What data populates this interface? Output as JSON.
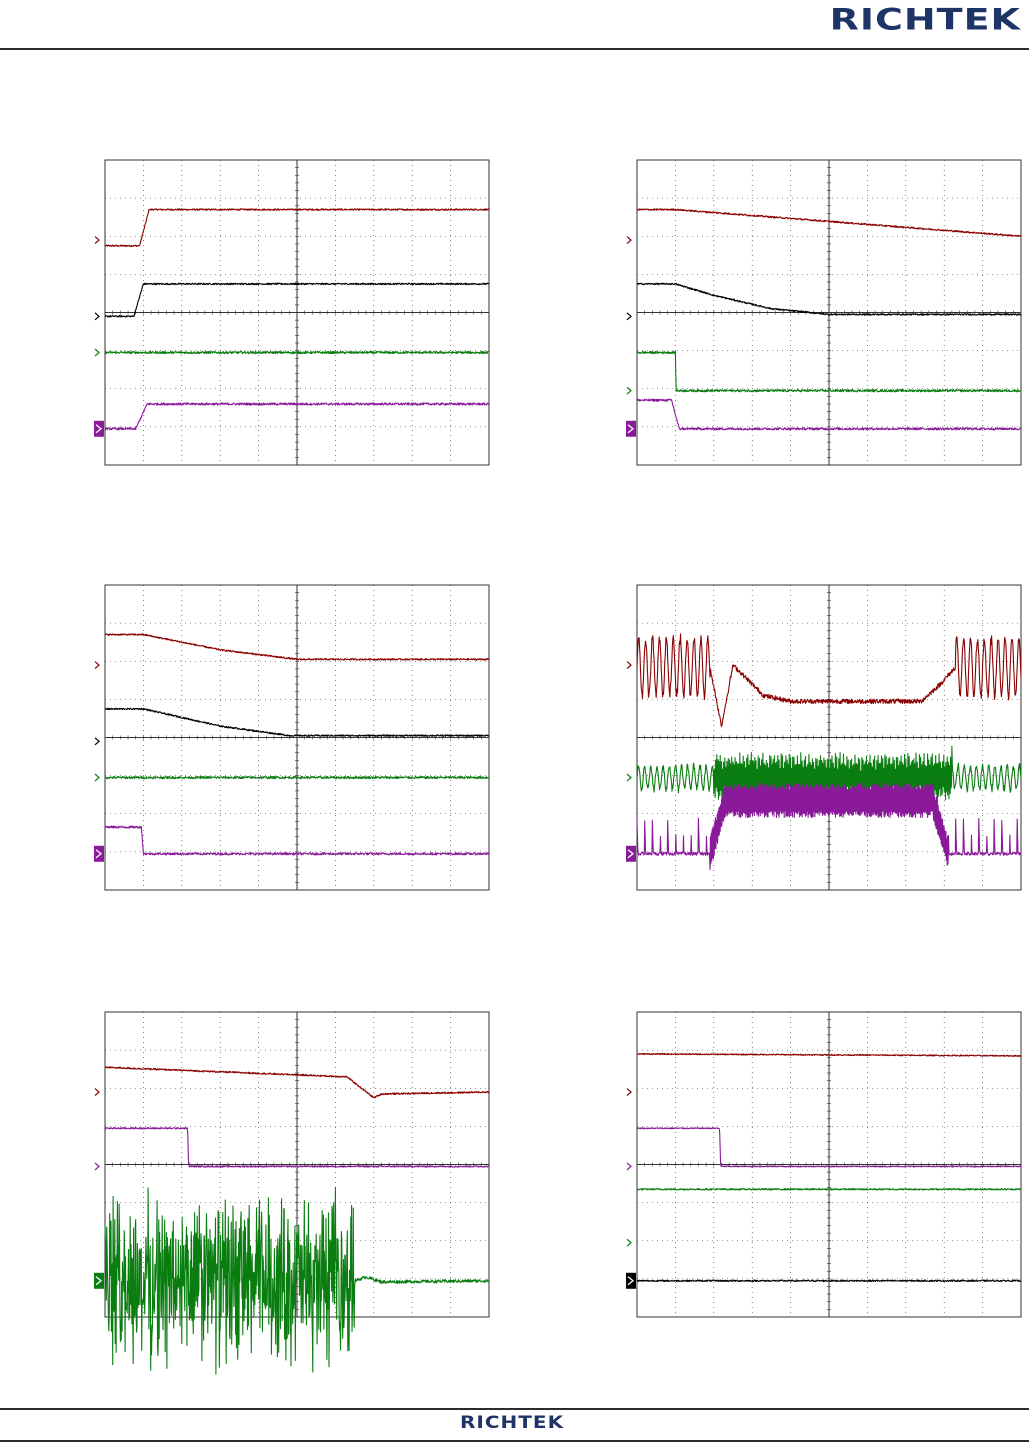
{
  "header": {
    "brand": "RICHTEK"
  },
  "footer": {
    "brand": "RICHTEK"
  },
  "colors": {
    "ch_red": "#8b0000",
    "ch_black": "#000000",
    "ch_green": "#0a7d10",
    "ch_purple": "#8a1a9a",
    "grid": "#333333",
    "marker_box_purple": "#8a1a9a",
    "marker_box_black": "#000000"
  },
  "chart_data": [
    {
      "type": "line",
      "id": "scope-1",
      "x_divisions": 10,
      "y_divisions": 8,
      "xlim": [
        0,
        10
      ],
      "ylim": [
        0,
        8
      ],
      "grid": true,
      "series": [
        {
          "color": "red",
          "marker": 5.9,
          "noise": 0.02,
          "points": [
            [
              0,
              5.75
            ],
            [
              0.9,
              5.75
            ],
            [
              1.15,
              6.7
            ],
            [
              10,
              6.7
            ]
          ]
        },
        {
          "color": "black",
          "marker": 3.9,
          "noise": 0.02,
          "points": [
            [
              0,
              3.9
            ],
            [
              0.75,
              3.9
            ],
            [
              1.0,
              4.75
            ],
            [
              10,
              4.75
            ]
          ]
        },
        {
          "color": "green",
          "marker": 2.95,
          "noise": 0.03,
          "points": [
            [
              0,
              2.95
            ],
            [
              10,
              2.95
            ]
          ]
        },
        {
          "color": "purple",
          "marker": 0.95,
          "marker_box": true,
          "noise": 0.03,
          "points": [
            [
              0,
              0.95
            ],
            [
              0.8,
              0.95
            ],
            [
              1.1,
              1.6
            ],
            [
              10,
              1.6
            ]
          ]
        }
      ]
    },
    {
      "type": "line",
      "id": "scope-2",
      "x_divisions": 10,
      "y_divisions": 8,
      "xlim": [
        0,
        10
      ],
      "ylim": [
        0,
        8
      ],
      "grid": true,
      "series": [
        {
          "color": "red",
          "marker": 5.9,
          "noise": 0.02,
          "points": [
            [
              0,
              6.7
            ],
            [
              1,
              6.7
            ],
            [
              10,
              6.0
            ]
          ]
        },
        {
          "color": "black",
          "marker": 3.9,
          "noise": 0.02,
          "points": [
            [
              0,
              4.75
            ],
            [
              1,
              4.75
            ],
            [
              2,
              4.45
            ],
            [
              3.5,
              4.1
            ],
            [
              5,
              3.95
            ],
            [
              10,
              3.95
            ]
          ]
        },
        {
          "color": "green",
          "marker": 1.95,
          "noise": 0.03,
          "points": [
            [
              0,
              2.95
            ],
            [
              1.0,
              2.95
            ],
            [
              1.02,
              1.95
            ],
            [
              10,
              1.95
            ]
          ]
        },
        {
          "color": "purple",
          "marker": 0.95,
          "marker_box": true,
          "noise": 0.03,
          "points": [
            [
              0,
              1.7
            ],
            [
              0.9,
              1.7
            ],
            [
              1.1,
              0.95
            ],
            [
              10,
              0.95
            ]
          ]
        }
      ]
    },
    {
      "type": "line",
      "id": "scope-3",
      "x_divisions": 10,
      "y_divisions": 8,
      "xlim": [
        0,
        10
      ],
      "ylim": [
        0,
        8
      ],
      "grid": true,
      "series": [
        {
          "color": "red",
          "marker": 5.9,
          "noise": 0.02,
          "points": [
            [
              0,
              6.7
            ],
            [
              1,
              6.7
            ],
            [
              3,
              6.3
            ],
            [
              5,
              6.05
            ],
            [
              10,
              6.05
            ]
          ]
        },
        {
          "color": "black",
          "marker": 3.9,
          "noise": 0.02,
          "points": [
            [
              0,
              4.75
            ],
            [
              1,
              4.75
            ],
            [
              3,
              4.3
            ],
            [
              4.8,
              4.05
            ],
            [
              10,
              4.05
            ]
          ]
        },
        {
          "color": "green",
          "marker": 2.95,
          "noise": 0.03,
          "points": [
            [
              0,
              2.95
            ],
            [
              10,
              2.95
            ]
          ]
        },
        {
          "color": "purple",
          "marker": 0.95,
          "marker_box": true,
          "noise": 0.03,
          "points": [
            [
              0,
              1.65
            ],
            [
              0.95,
              1.65
            ],
            [
              1.0,
              0.95
            ],
            [
              10,
              0.95
            ]
          ]
        }
      ]
    },
    {
      "type": "line",
      "id": "scope-4",
      "x_divisions": 10,
      "y_divisions": 8,
      "xlim": [
        0,
        10
      ],
      "ylim": [
        0,
        8
      ],
      "grid": true,
      "series": [
        {
          "color": "red",
          "marker": 5.9,
          "noise": 0.06,
          "points": [
            [
              0,
              5.85
            ],
            [
              1.9,
              5.85
            ],
            [
              2.2,
              4.3
            ],
            [
              2.5,
              5.9
            ],
            [
              3.3,
              5.1
            ],
            [
              4,
              4.95
            ],
            [
              7.4,
              4.95
            ],
            [
              7.9,
              5.4
            ],
            [
              8.3,
              5.85
            ],
            [
              10,
              5.85
            ]
          ],
          "bursts": [
            {
              "x0": 0,
              "x1": 1.9,
              "period": 0.18,
              "amp": 0.75
            },
            {
              "x0": 8.3,
              "x1": 10,
              "period": 0.18,
              "amp": 0.75
            }
          ]
        },
        {
          "color": "green",
          "marker": 2.95,
          "noise": 0.06,
          "points": [
            [
              0,
              2.95
            ],
            [
              10,
              2.95
            ]
          ],
          "bursts": [
            {
              "x0": 0,
              "x1": 2.0,
              "period": 0.16,
              "amp": 0.3
            },
            {
              "x0": 2.0,
              "x1": 8.2,
              "period": 0.03,
              "amp": 0.55
            },
            {
              "x0": 8.2,
              "x1": 10,
              "period": 0.16,
              "amp": 0.3
            }
          ]
        },
        {
          "color": "purple",
          "marker": 0.95,
          "marker_box": true,
          "noise": 0.04,
          "points": [
            [
              0,
              0.95
            ],
            [
              10,
              0.95
            ]
          ],
          "spikes": [
            {
              "x0": 0,
              "x1": 1.9,
              "period": 0.2,
              "amp": 0.9
            },
            {
              "x0": 8.1,
              "x1": 10,
              "period": 0.2,
              "amp": 0.9
            }
          ],
          "plateau": {
            "x0": 1.9,
            "x1": 8.1,
            "ramp": 0.4,
            "level": 2.35,
            "ripple": 0.45,
            "period": 0.05
          }
        }
      ]
    },
    {
      "type": "line",
      "id": "scope-5",
      "x_divisions": 10,
      "y_divisions": 8,
      "xlim": [
        0,
        10
      ],
      "ylim": [
        0,
        8
      ],
      "grid": true,
      "series": [
        {
          "color": "red",
          "marker": 5.9,
          "noise": 0.02,
          "points": [
            [
              0,
              6.55
            ],
            [
              6.3,
              6.3
            ],
            [
              7.0,
              5.75
            ],
            [
              7.2,
              5.85
            ],
            [
              10,
              5.9
            ]
          ]
        },
        {
          "color": "purple",
          "marker": 3.95,
          "noise": 0.02,
          "points": [
            [
              0,
              4.95
            ],
            [
              2.15,
              4.95
            ],
            [
              2.18,
              3.95
            ],
            [
              10,
              3.95
            ]
          ]
        },
        {
          "color": "green",
          "marker": 0.95,
          "marker_box": true,
          "noise": 0.04,
          "points": [
            [
              0,
              0.95
            ],
            [
              6.5,
              0.95
            ],
            [
              6.8,
              1.05
            ],
            [
              7.2,
              0.92
            ],
            [
              10,
              0.95
            ]
          ],
          "bursts": [
            {
              "x0": 0,
              "x1": 6.5,
              "period": 0.03,
              "amp": 2.6,
              "random": true
            }
          ]
        }
      ]
    },
    {
      "type": "line",
      "id": "scope-6",
      "x_divisions": 10,
      "y_divisions": 8,
      "xlim": [
        0,
        10
      ],
      "ylim": [
        0,
        8
      ],
      "grid": true,
      "series": [
        {
          "color": "red",
          "marker": 5.9,
          "noise": 0.015,
          "points": [
            [
              0,
              6.9
            ],
            [
              10,
              6.85
            ]
          ]
        },
        {
          "color": "purple",
          "marker": 3.95,
          "noise": 0.015,
          "points": [
            [
              0,
              4.95
            ],
            [
              2.15,
              4.95
            ],
            [
              2.18,
              3.95
            ],
            [
              10,
              3.95
            ]
          ]
        },
        {
          "color": "green",
          "marker": 1.95,
          "noise": 0.02,
          "points": [
            [
              0,
              3.35
            ],
            [
              10,
              3.35
            ]
          ]
        },
        {
          "color": "black",
          "marker": 0.95,
          "marker_box": true,
          "noise": 0.02,
          "points": [
            [
              0,
              0.95
            ],
            [
              10,
              0.95
            ]
          ]
        }
      ]
    }
  ]
}
